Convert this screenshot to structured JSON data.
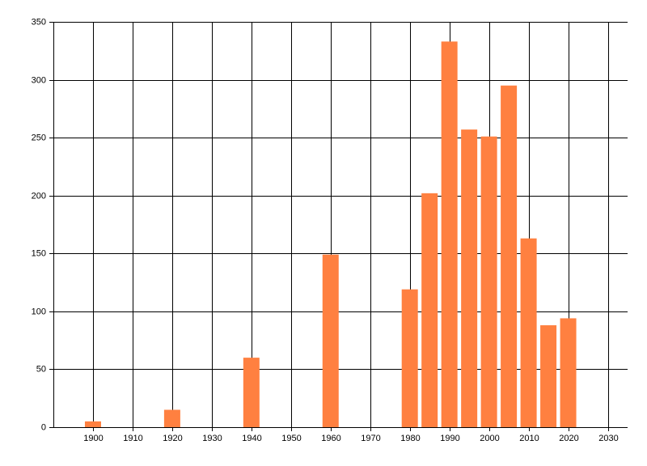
{
  "chart_data": {
    "type": "bar",
    "x": [
      1900,
      1920,
      1940,
      1960,
      1980,
      1985,
      1990,
      1995,
      2000,
      2005,
      2010,
      2015,
      2020
    ],
    "values": [
      5,
      15,
      60,
      149,
      119,
      202,
      333,
      257,
      251,
      295,
      163,
      88,
      94
    ],
    "color": "#ff8040",
    "xlim": [
      1890,
      2035
    ],
    "xticks": [
      1900,
      1910,
      1920,
      1930,
      1940,
      1950,
      1960,
      1970,
      1980,
      1990,
      2000,
      2010,
      2020,
      2030
    ],
    "ylim": [
      0,
      350
    ],
    "yticks": [
      0,
      50,
      100,
      150,
      200,
      250,
      300,
      350
    ],
    "grid": true
  }
}
